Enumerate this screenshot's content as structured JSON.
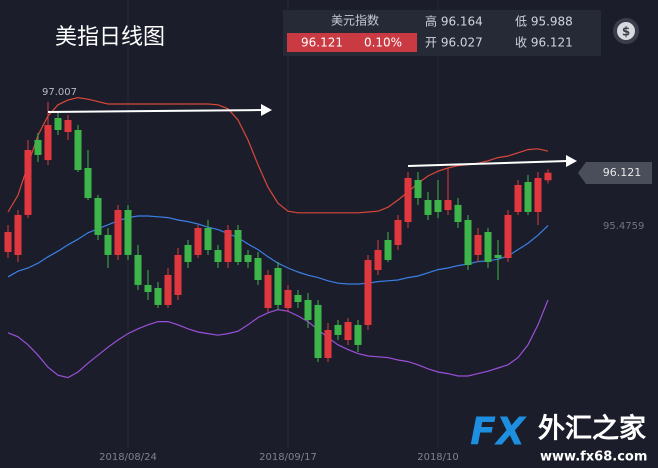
{
  "chart_data": {
    "type": "candlestick",
    "title": "美指日线图",
    "up_color": "#e0383e",
    "down_color": "#3db54a",
    "ylim": [
      92.655,
      98.28
    ],
    "categories": [
      null,
      null,
      null,
      null,
      null,
      null,
      null,
      null,
      null,
      null,
      null,
      null,
      "2018/08/24",
      null,
      null,
      null,
      null,
      null,
      null,
      null,
      null,
      null,
      null,
      null,
      null,
      null,
      null,
      null,
      "2018/09/17",
      null,
      null,
      null,
      null,
      null,
      null,
      null,
      null,
      null,
      null,
      null,
      null,
      null,
      null,
      "2018/10",
      null,
      null,
      null,
      null,
      null,
      null,
      null,
      null,
      null,
      null,
      null
    ],
    "candles": {
      "open": [
        95.13,
        95.093,
        95.593,
        96.53,
        96.28,
        96.805,
        96.63,
        96.655,
        96.18,
        95.805,
        95.343,
        95.093,
        95.655,
        95.093,
        94.718,
        94.68,
        94.468,
        94.593,
        95.218,
        95.093,
        95.43,
        95.155,
        95.005,
        95.405,
        95.093,
        95.055,
        94.43,
        94.93,
        94.43,
        94.593,
        94.53,
        94.468,
        93.805,
        94.218,
        94.03,
        94.218,
        94.218,
        94.905,
        95.28,
        95.218,
        95.505,
        96.03,
        95.78,
        95.78,
        95.655,
        95.718,
        95.53,
        95.093,
        95.38,
        95.093,
        95.055,
        95.63,
        96.005,
        95.63,
        96.027
      ],
      "high": [
        95.468,
        95.655,
        96.53,
        96.618,
        97.007,
        96.88,
        96.843,
        96.718,
        96.405,
        95.843,
        95.43,
        95.718,
        95.718,
        95.218,
        94.905,
        94.755,
        94.93,
        95.18,
        95.28,
        95.468,
        95.53,
        95.218,
        95.468,
        95.468,
        95.155,
        95.13,
        94.905,
        95.005,
        94.718,
        94.655,
        94.618,
        94.53,
        94.243,
        94.28,
        94.305,
        94.28,
        95.093,
        95.28,
        95.38,
        95.593,
        96.13,
        96.13,
        95.88,
        96.03,
        96.18,
        95.805,
        95.593,
        95.43,
        95.43,
        95.28,
        95.655,
        96.03,
        96.093,
        96.13,
        96.164
      ],
      "low": [
        95.055,
        95.005,
        95.555,
        96.255,
        96.218,
        96.593,
        96.53,
        96.13,
        95.78,
        95.28,
        94.93,
        95.03,
        95.03,
        94.655,
        94.53,
        94.43,
        94.43,
        94.53,
        94.93,
        95.055,
        95.093,
        94.93,
        94.93,
        94.968,
        94.93,
        94.718,
        94.38,
        94.405,
        94.38,
        94.43,
        94.18,
        93.755,
        93.755,
        94.03,
        93.968,
        93.88,
        94.155,
        94.843,
        95.005,
        95.155,
        95.43,
        95.718,
        95.53,
        95.555,
        95.593,
        95.43,
        94.905,
        95.005,
        94.93,
        94.78,
        95.005,
        95.593,
        95.593,
        95.468,
        95.988
      ],
      "close": [
        95.38,
        95.593,
        96.405,
        96.343,
        96.718,
        96.655,
        96.78,
        96.155,
        95.805,
        95.343,
        95.093,
        95.655,
        95.093,
        94.718,
        94.63,
        94.468,
        94.843,
        95.093,
        95.005,
        95.43,
        95.155,
        95.005,
        95.405,
        95.005,
        95.005,
        94.78,
        94.843,
        94.468,
        94.655,
        94.505,
        94.28,
        93.805,
        94.155,
        94.093,
        94.255,
        93.968,
        95.03,
        95.155,
        95.03,
        95.53,
        96.055,
        95.805,
        95.593,
        95.63,
        95.78,
        95.505,
        94.968,
        95.343,
        95.005,
        95.055,
        95.593,
        95.968,
        95.63,
        96.055,
        96.121
      ]
    },
    "lines": [
      {
        "color": "#d9473a",
        "values": [
          95.63,
          95.84,
          96.22,
          96.59,
          96.83,
          96.97,
          97.03,
          97.06,
          97.04,
          97.01,
          96.98,
          96.98,
          96.98,
          96.98,
          96.98,
          96.98,
          96.98,
          96.98,
          96.98,
          96.98,
          96.98,
          96.97,
          96.92,
          96.78,
          96.53,
          96.22,
          95.94,
          95.74,
          95.64,
          95.62,
          95.62,
          95.62,
          95.62,
          95.62,
          95.62,
          95.62,
          95.63,
          95.64,
          95.69,
          95.78,
          95.88,
          95.99,
          96.08,
          96.14,
          96.18,
          96.21,
          96.22,
          96.24,
          96.27,
          96.31,
          96.33,
          96.37,
          96.41,
          96.42,
          96.39
        ]
      },
      {
        "color": "#3b7fe6",
        "values": [
          94.82,
          94.89,
          94.93,
          94.99,
          95.07,
          95.14,
          95.22,
          95.29,
          95.37,
          95.42,
          95.47,
          95.52,
          95.56,
          95.58,
          95.58,
          95.57,
          95.56,
          95.53,
          95.51,
          95.48,
          95.44,
          95.41,
          95.36,
          95.31,
          95.23,
          95.16,
          95.07,
          94.99,
          94.93,
          94.88,
          94.84,
          94.81,
          94.77,
          94.74,
          94.73,
          94.73,
          94.74,
          94.76,
          94.77,
          94.78,
          94.81,
          94.83,
          94.87,
          94.91,
          94.93,
          94.96,
          94.98,
          95.01,
          95.02,
          95.04,
          95.08,
          95.16,
          95.24,
          95.34,
          95.46
        ]
      },
      {
        "color": "#9a4fd8",
        "values": [
          94.12,
          94.07,
          93.97,
          93.84,
          93.69,
          93.59,
          93.56,
          93.63,
          93.74,
          93.84,
          93.94,
          94.03,
          94.11,
          94.17,
          94.22,
          94.26,
          94.26,
          94.22,
          94.17,
          94.13,
          94.11,
          94.09,
          94.11,
          94.14,
          94.22,
          94.31,
          94.37,
          94.41,
          94.39,
          94.33,
          94.26,
          94.16,
          94.06,
          93.97,
          93.91,
          93.86,
          93.83,
          93.82,
          93.81,
          93.78,
          93.76,
          93.72,
          93.67,
          93.63,
          93.61,
          93.58,
          93.58,
          93.61,
          93.64,
          93.68,
          93.72,
          93.81,
          93.97,
          94.22,
          94.53
        ]
      }
    ],
    "high_label": "97.007",
    "last_label": "96.121",
    "mid_label": "95.4759"
  },
  "info_panel": {
    "name": "美元指数",
    "price": "96.121",
    "change": "0.10%",
    "high": "高 96.164",
    "low": "低 95.988",
    "open": "开 96.027",
    "close": "收 96.121"
  },
  "watermark": {
    "brand": "FX",
    "name": "外汇之家",
    "url": "www.fx68.com"
  }
}
